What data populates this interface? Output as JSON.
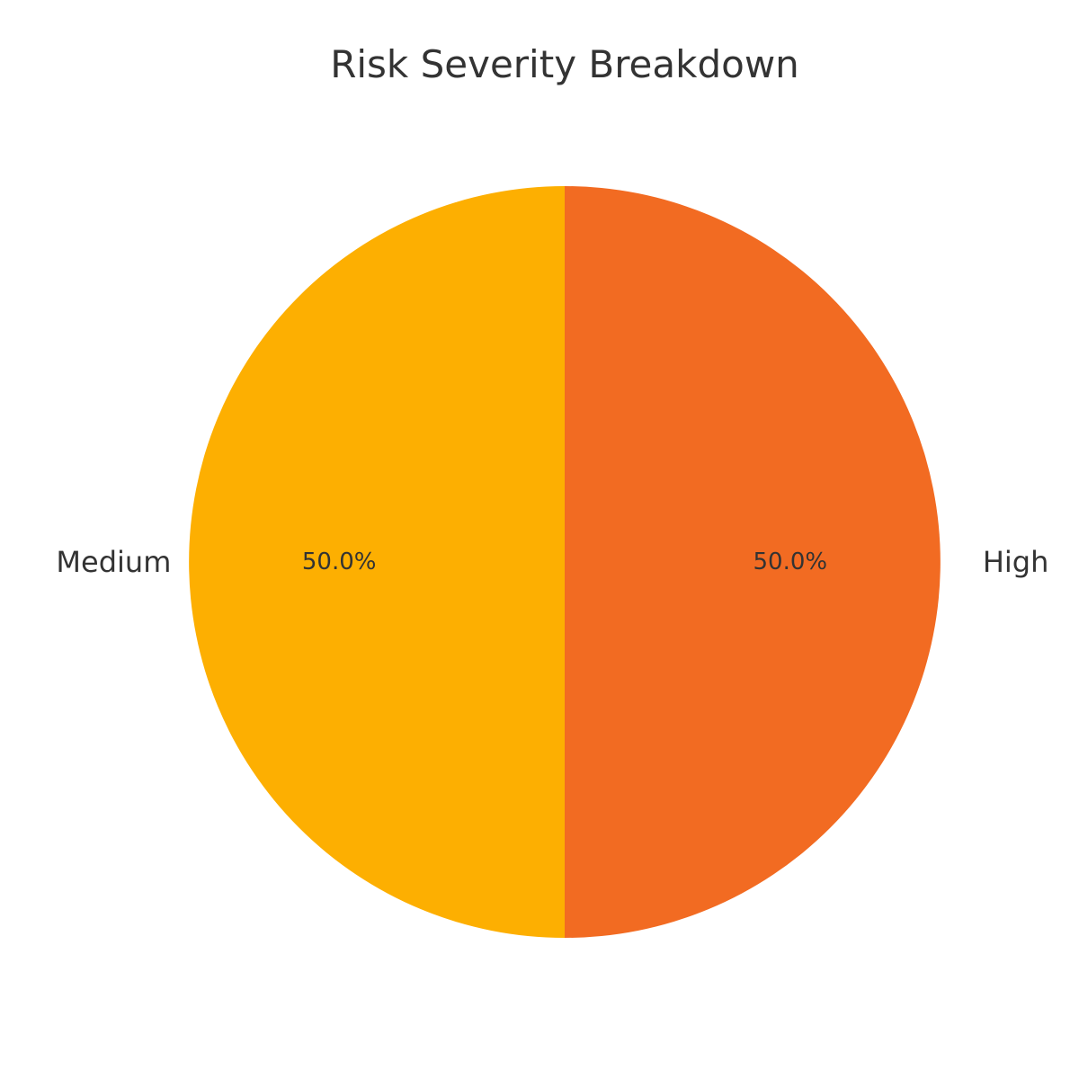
{
  "chart_data": {
    "type": "pie",
    "title": "Risk Severity Breakdown",
    "categories": [
      "High",
      "Medium"
    ],
    "values": [
      50.0,
      50.0
    ],
    "percent_labels": [
      "50.0%",
      "50.0%"
    ],
    "colors": [
      "#F26B22",
      "#FDAF01"
    ],
    "start_angle_degrees": 90,
    "direction": "clockwise",
    "legend": "none"
  }
}
